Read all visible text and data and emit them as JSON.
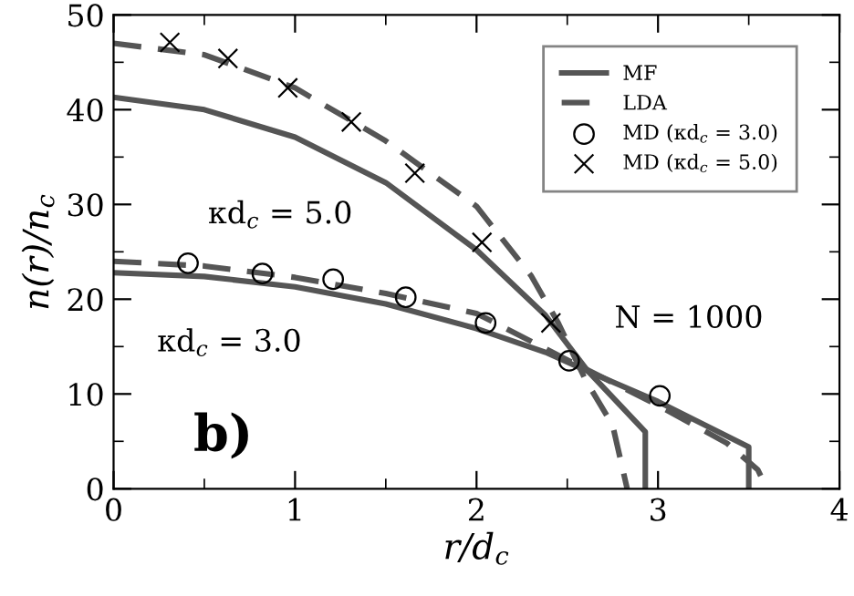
{
  "chart_data": {
    "type": "line",
    "xlabel": "r/d$_{c}$",
    "ylabel": "n(r)/n$_{c}$",
    "xlim": [
      0,
      4
    ],
    "ylim": [
      0,
      50
    ],
    "xticks": [
      0,
      1,
      2,
      3,
      4
    ],
    "yticks": [
      0,
      10,
      20,
      30,
      40,
      50
    ],
    "grid": false,
    "legend": "top right",
    "series": [
      {
        "name": "MF",
        "type": "line",
        "line_style": "solid",
        "color": "#555555",
        "x": [
          0,
          0.5,
          1,
          1.5,
          2,
          2.38,
          2.61,
          2.93,
          2.93
        ],
        "values": [
          41.3,
          40.0,
          37.1,
          32.3,
          25.2,
          18.3,
          12.5,
          6.0,
          0
        ]
      },
      {
        "type": "line",
        "line_style": "solid",
        "color": "#555555",
        "x": [
          0,
          0.5,
          1,
          1.5,
          2,
          2.38,
          2.6,
          3.0,
          3.5,
          3.5
        ],
        "values": [
          22.8,
          22.4,
          21.3,
          19.5,
          16.9,
          14.4,
          12.5,
          9.2,
          4.4,
          0
        ]
      },
      {
        "name": "LDA",
        "type": "line",
        "line_style": "dashed",
        "color": "#555555",
        "x": [
          0,
          0.5,
          1,
          1.5,
          2,
          2.3,
          2.45,
          2.6,
          2.75,
          2.83
        ],
        "values": [
          47.0,
          45.8,
          42.3,
          36.7,
          29.8,
          22.5,
          17.5,
          11.5,
          6.7,
          0
        ]
      },
      {
        "type": "line",
        "line_style": "dashed",
        "color": "#555555",
        "x": [
          0,
          0.5,
          1,
          1.5,
          2,
          2.5,
          3.0,
          3.38,
          3.55,
          3.6
        ],
        "values": [
          24.0,
          23.5,
          22.3,
          20.6,
          18.5,
          13.6,
          8.8,
          4.8,
          2.0,
          0
        ]
      },
      {
        "name": "MD (κd$_{c}$ = 3.0)",
        "type": "scatter",
        "marker": "circle",
        "color": "#000000",
        "x": [
          0.41,
          0.82,
          1.21,
          1.61,
          2.05,
          2.51,
          3.01
        ],
        "values": [
          23.8,
          22.7,
          22.1,
          20.2,
          17.5,
          13.5,
          9.8
        ]
      },
      {
        "name": "MD (κd$_{c}$ = 5.0)",
        "type": "scatter",
        "marker": "cross",
        "color": "#000000",
        "x": [
          0.31,
          0.63,
          0.96,
          1.31,
          1.66,
          2.03,
          2.41
        ],
        "values": [
          47.1,
          45.4,
          42.3,
          38.7,
          33.3,
          26.0,
          17.5
        ]
      }
    ],
    "annotations": [
      "κd$_{c}$ = 5.0",
      "κd$_{c}$ = 3.0",
      "N = 1000",
      "b)"
    ]
  }
}
